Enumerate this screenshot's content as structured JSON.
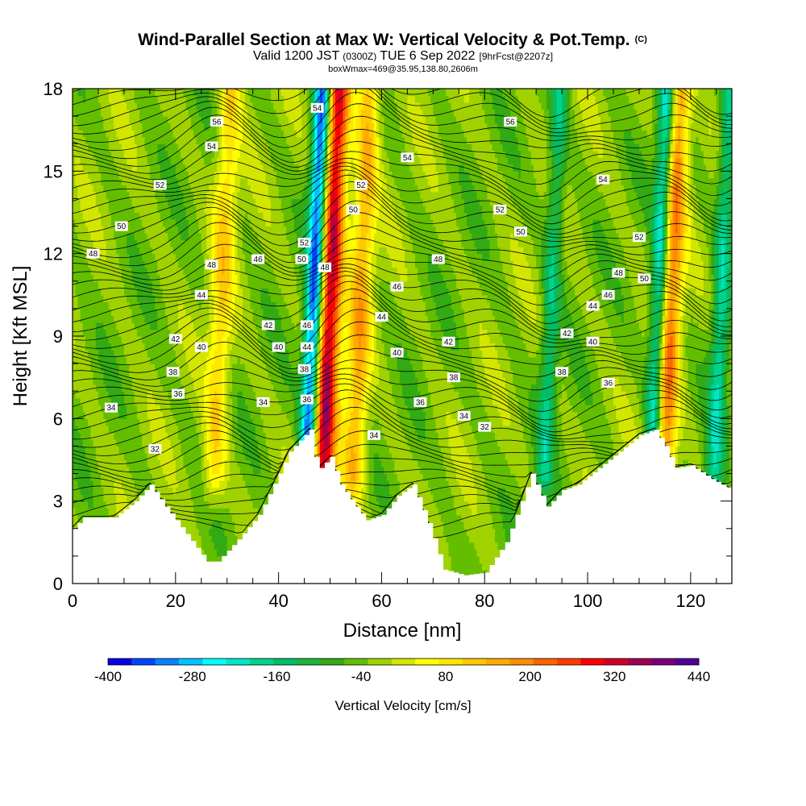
{
  "chart_data": {
    "type": "heatmap",
    "title": {
      "main": "Wind-Parallel Section at Max W: Vertical Velocity & Pot.Temp.",
      "mark": "(C)",
      "valid_a": "Valid 1200 JST",
      "valid_b": "(0300Z)",
      "valid_c": "TUE 6 Sep 2022",
      "fcst": "[9hrFcst@2207z]",
      "box": "boxWmax=469@35.95,138.80,2606m"
    },
    "xlabel": "Distance [nm]",
    "ylabel": "Height [Kft MSL]",
    "xlim": [
      0,
      128
    ],
    "ylim": [
      0,
      18
    ],
    "x_ticks": [
      0,
      20,
      40,
      60,
      80,
      100,
      120
    ],
    "y_ticks": [
      0,
      3,
      6,
      9,
      12,
      15,
      18
    ],
    "colorbar": {
      "label": "Vertical Velocity [cm/s]",
      "tick_labels": [
        "-400",
        "-280",
        "-160",
        "-40",
        "80",
        "200",
        "320",
        "440"
      ],
      "min": -400,
      "max": 440,
      "step": 40,
      "colors": [
        "#0a00e6",
        "#0046ff",
        "#0a82ff",
        "#00c3ff",
        "#00ffff",
        "#00e6c8",
        "#00d28c",
        "#00be64",
        "#1eb43c",
        "#32aa14",
        "#64be00",
        "#a0d200",
        "#d2e600",
        "#ffff00",
        "#ffe600",
        "#ffc800",
        "#ffaa00",
        "#ff8c00",
        "#ff6400",
        "#ff3c00",
        "#ff0000",
        "#d20028",
        "#a00050",
        "#780078",
        "#500096"
      ]
    },
    "terrain_profile": {
      "distance_nm": [
        0,
        2,
        8,
        12,
        15,
        18,
        22,
        26,
        28,
        32,
        36,
        40,
        42,
        44,
        46,
        47,
        48,
        50,
        52,
        55,
        57,
        60,
        63,
        66,
        69,
        72,
        76,
        80,
        84,
        87,
        89,
        92,
        95,
        98,
        102,
        106,
        110,
        113,
        115,
        117,
        120,
        124,
        128
      ],
      "height_kft": [
        2.0,
        2.4,
        2.4,
        3.0,
        3.6,
        2.8,
        1.8,
        0.8,
        0.8,
        1.6,
        2.5,
        4.0,
        4.8,
        5.2,
        5.6,
        4.6,
        4.2,
        4.6,
        3.6,
        2.8,
        2.3,
        2.5,
        3.2,
        3.6,
        2.2,
        0.5,
        0.3,
        0.4,
        1.5,
        3.0,
        4.0,
        2.8,
        3.4,
        3.6,
        4.2,
        4.8,
        5.4,
        5.6,
        5.0,
        4.2,
        4.3,
        3.8,
        3.4
      ]
    },
    "vertical_velocity_cores": [
      {
        "x_nm": 49,
        "sign": "up",
        "peak_cms": 440
      },
      {
        "x_nm": 46,
        "sign": "down",
        "peak_cms": -400
      },
      {
        "x_nm": 115,
        "sign": "up",
        "peak_cms": 300
      },
      {
        "x_nm": 113,
        "sign": "down",
        "peak_cms": -300
      },
      {
        "x_nm": 55,
        "sign": "up",
        "peak_cms": 200
      },
      {
        "x_nm": 28,
        "sign": "up",
        "peak_cms": 150
      },
      {
        "x_nm": 92,
        "sign": "down",
        "peak_cms": -150
      },
      {
        "x_nm": 125,
        "sign": "down",
        "peak_cms": -180
      }
    ],
    "theta_contour_labels": [
      {
        "text": "56",
        "x": 28,
        "y": 16.8
      },
      {
        "text": "54",
        "x": 27,
        "y": 15.9
      },
      {
        "text": "52",
        "x": 17,
        "y": 14.5
      },
      {
        "text": "50",
        "x": 9.5,
        "y": 13.0
      },
      {
        "text": "48",
        "x": 4,
        "y": 12.0
      },
      {
        "text": "48",
        "x": 27,
        "y": 11.6
      },
      {
        "text": "46",
        "x": 36,
        "y": 11.8
      },
      {
        "text": "44",
        "x": 25,
        "y": 10.5
      },
      {
        "text": "42",
        "x": 20,
        "y": 8.9
      },
      {
        "text": "42",
        "x": 38,
        "y": 9.4
      },
      {
        "text": "40",
        "x": 25,
        "y": 8.6
      },
      {
        "text": "40",
        "x": 40,
        "y": 8.6
      },
      {
        "text": "38",
        "x": 19.5,
        "y": 7.7
      },
      {
        "text": "36",
        "x": 20.5,
        "y": 6.9
      },
      {
        "text": "34",
        "x": 7.5,
        "y": 6.4
      },
      {
        "text": "34",
        "x": 37,
        "y": 6.6
      },
      {
        "text": "32",
        "x": 16,
        "y": 4.9
      },
      {
        "text": "54",
        "x": 47.5,
        "y": 17.3
      },
      {
        "text": "52",
        "x": 45,
        "y": 12.4
      },
      {
        "text": "50",
        "x": 44.5,
        "y": 11.8
      },
      {
        "text": "48",
        "x": 49,
        "y": 11.5
      },
      {
        "text": "46",
        "x": 45.5,
        "y": 9.4
      },
      {
        "text": "44",
        "x": 45.5,
        "y": 8.6
      },
      {
        "text": "38",
        "x": 45,
        "y": 7.8
      },
      {
        "text": "36",
        "x": 45.5,
        "y": 6.7
      },
      {
        "text": "52",
        "x": 56,
        "y": 14.5
      },
      {
        "text": "50",
        "x": 54.5,
        "y": 13.6
      },
      {
        "text": "46",
        "x": 63,
        "y": 10.8
      },
      {
        "text": "44",
        "x": 60,
        "y": 9.7
      },
      {
        "text": "40",
        "x": 63,
        "y": 8.4
      },
      {
        "text": "36",
        "x": 67.5,
        "y": 6.6
      },
      {
        "text": "34",
        "x": 58.5,
        "y": 5.4
      },
      {
        "text": "56",
        "x": 85,
        "y": 16.8
      },
      {
        "text": "54",
        "x": 65,
        "y": 15.5
      },
      {
        "text": "52",
        "x": 83,
        "y": 13.6
      },
      {
        "text": "50",
        "x": 87,
        "y": 12.8
      },
      {
        "text": "48",
        "x": 71,
        "y": 11.8
      },
      {
        "text": "42",
        "x": 73,
        "y": 8.8
      },
      {
        "text": "38",
        "x": 74,
        "y": 7.5
      },
      {
        "text": "34",
        "x": 76,
        "y": 6.1
      },
      {
        "text": "32",
        "x": 80,
        "y": 5.7
      },
      {
        "text": "54",
        "x": 103,
        "y": 14.7
      },
      {
        "text": "52",
        "x": 110,
        "y": 12.6
      },
      {
        "text": "48",
        "x": 106,
        "y": 11.3
      },
      {
        "text": "46",
        "x": 104,
        "y": 10.5
      },
      {
        "text": "44",
        "x": 101,
        "y": 10.1
      },
      {
        "text": "50",
        "x": 111,
        "y": 11.1
      },
      {
        "text": "42",
        "x": 96,
        "y": 9.1
      },
      {
        "text": "40",
        "x": 101,
        "y": 8.8
      },
      {
        "text": "38",
        "x": 95,
        "y": 7.7
      },
      {
        "text": "36",
        "x": 104,
        "y": 7.3
      }
    ]
  }
}
